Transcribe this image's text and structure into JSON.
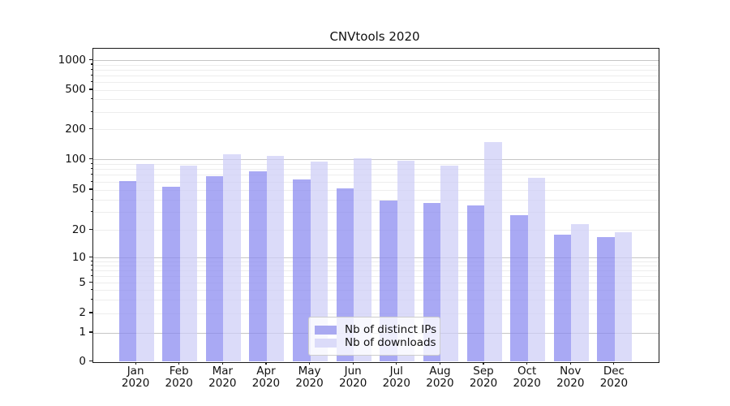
{
  "chart_data": {
    "type": "bar",
    "title": "CNVtools 2020",
    "categories": [
      "Jan 2020",
      "Feb 2020",
      "Mar 2020",
      "Apr 2020",
      "May 2020",
      "Jun 2020",
      "Jul 2020",
      "Aug 2020",
      "Sep 2020",
      "Oct 2020",
      "Nov 2020",
      "Dec 2020"
    ],
    "series": [
      {
        "name": "Nb of distinct IPs",
        "values": [
          61,
          54,
          68,
          77,
          64,
          52,
          39,
          37,
          35,
          28,
          18,
          17
        ],
        "fill": "#8888f0",
        "legend_swatch": "#a9a9f1"
      },
      {
        "name": "Nb of downloads",
        "values": [
          90,
          88,
          114,
          110,
          95,
          104,
          98,
          87,
          151,
          66,
          23,
          19
        ],
        "fill": "#cdcdf7",
        "legend_swatch": "#dbdbf9"
      }
    ],
    "xlabel": "",
    "ylabel": "",
    "yscale": "symlog",
    "yticks": [
      0,
      1,
      2,
      5,
      10,
      20,
      50,
      100,
      200,
      500,
      1000
    ],
    "ylim": [
      0,
      1200
    ],
    "grid": "horizontal major+minor",
    "legend_position": "lower center inside plot"
  },
  "colors": {
    "bar_dark": "#a9a9f1",
    "bar_light": "#dbdbf9",
    "grid_major": "#c6c6c6",
    "grid_minor": "#ededed",
    "spine": "#1a1a1a",
    "background": "#ffffff"
  }
}
